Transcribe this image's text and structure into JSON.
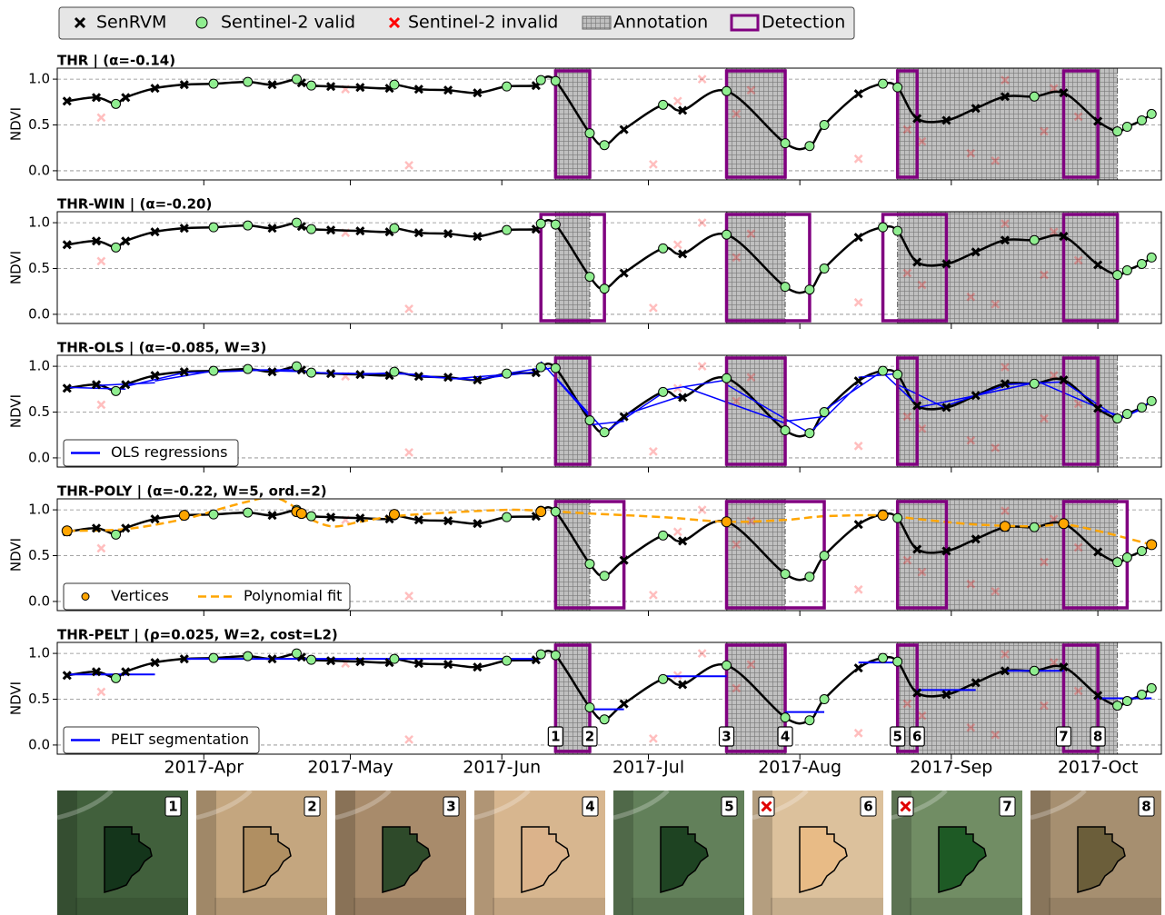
{
  "chart_data": {
    "type": "line",
    "ylabel": "NDVI",
    "xlim": [
      61,
      287
    ],
    "xticks": [
      {
        "value": 91,
        "label": "2017-Apr"
      },
      {
        "value": 121,
        "label": "2017-May"
      },
      {
        "value": 152,
        "label": "2017-Jun"
      },
      {
        "value": 182,
        "label": "2017-Jul"
      },
      {
        "value": 213,
        "label": "2017-Aug"
      },
      {
        "value": 244,
        "label": "2017-Sep"
      },
      {
        "value": 274,
        "label": "2017-Oct"
      }
    ],
    "ylim": [
      -0.1,
      1.12
    ],
    "yticks": [
      {
        "value": 0,
        "label": "0.0"
      },
      {
        "value": 0.5,
        "label": "0.5"
      },
      {
        "value": 1,
        "label": "1.0"
      }
    ],
    "grid": true,
    "series": [
      {
        "name": "SenRVM",
        "color": "#000000",
        "x": [
          63,
          69,
          75,
          81,
          87,
          105,
          111,
          117,
          123,
          129,
          135,
          141,
          147,
          159,
          177,
          189,
          225,
          237,
          243,
          249,
          255,
          267,
          274
        ],
        "values": [
          0.76,
          0.8,
          0.8,
          0.9,
          0.94,
          0.94,
          0.96,
          0.92,
          0.91,
          0.9,
          0.89,
          0.88,
          0.85,
          0.93,
          0.45,
          0.66,
          0.84,
          0.57,
          0.55,
          0.68,
          0.81,
          0.85,
          0.54
        ]
      },
      {
        "name": "Sentinel-2 valid",
        "color": "#90ee90",
        "x": [
          73,
          93,
          100,
          110,
          113,
          130,
          153,
          160,
          163,
          170,
          173,
          185,
          198,
          210,
          215,
          218,
          230,
          233,
          261,
          278,
          280,
          283,
          285
        ],
        "values": [
          0.73,
          0.95,
          0.97,
          1.0,
          0.93,
          0.94,
          0.92,
          0.99,
          0.98,
          0.41,
          0.28,
          0.72,
          0.87,
          0.3,
          0.27,
          0.5,
          0.95,
          0.91,
          0.81,
          0.43,
          0.48,
          0.55,
          0.62
        ]
      },
      {
        "name": "Sentinel-2 invalid",
        "color": "#ff0000",
        "x": [
          70,
          120,
          133,
          183,
          188,
          193,
          200,
          203,
          225,
          235,
          238,
          248,
          253,
          255,
          263,
          265,
          270
        ],
        "values": [
          0.58,
          0.89,
          0.06,
          0.07,
          0.76,
          1.0,
          0.62,
          0.88,
          0.13,
          0.45,
          0.32,
          0.19,
          0.11,
          0.99,
          0.43,
          0.9,
          0.59
        ]
      }
    ],
    "annotation_label": "Annotation",
    "annotation_color": "#c0c0c0",
    "annotations": [
      [
        163,
        170
      ],
      [
        198,
        210
      ],
      [
        233,
        278
      ]
    ],
    "detection_label": "Detection",
    "detection_color": "#800080",
    "panels": [
      {
        "title": "THR | (α=-0.14)",
        "detections": [
          [
            163,
            170
          ],
          [
            198,
            210
          ],
          [
            233,
            237
          ],
          [
            267,
            274
          ]
        ]
      },
      {
        "title": "THR-WIN | (α=-0.20)",
        "detections": [
          [
            160,
            173
          ],
          [
            198,
            215
          ],
          [
            230,
            243
          ],
          [
            267,
            278
          ]
        ]
      },
      {
        "title": "THR-OLS | (α=-0.085, W=3)",
        "detections": [
          [
            163,
            170
          ],
          [
            198,
            210
          ],
          [
            233,
            237
          ],
          [
            267,
            274
          ]
        ],
        "legend": "lower left",
        "ols": {
          "name": "OLS regressions",
          "color": "#0000ff",
          "segments": [
            [
              63,
              0.77,
              75,
              0.75
            ],
            [
              69,
              0.79,
              81,
              0.82
            ],
            [
              75,
              0.78,
              87,
              0.93
            ],
            [
              81,
              0.84,
              93,
              0.95
            ],
            [
              87,
              0.93,
              100,
              0.95
            ],
            [
              93,
              0.94,
              105,
              0.96
            ],
            [
              100,
              0.96,
              111,
              0.96
            ],
            [
              105,
              0.95,
              113,
              0.94
            ],
            [
              110,
              0.95,
              117,
              0.92
            ],
            [
              113,
              0.93,
              123,
              0.92
            ],
            [
              117,
              0.92,
              129,
              0.92
            ],
            [
              123,
              0.91,
              130,
              0.93
            ],
            [
              129,
              0.92,
              135,
              0.91
            ],
            [
              130,
              0.93,
              141,
              0.87
            ],
            [
              135,
              0.89,
              147,
              0.85
            ],
            [
              141,
              0.86,
              153,
              0.91
            ],
            [
              147,
              0.86,
              159,
              0.94
            ],
            [
              153,
              0.92,
              160,
              0.98
            ],
            [
              159,
              0.95,
              163,
              0.99
            ],
            [
              160,
              1.05,
              170,
              0.45
            ],
            [
              163,
              0.88,
              173,
              0.3
            ],
            [
              170,
              0.36,
              177,
              0.4
            ],
            [
              173,
              0.28,
              185,
              0.71
            ],
            [
              177,
              0.47,
              189,
              0.68
            ],
            [
              185,
              0.74,
              198,
              0.85
            ],
            [
              189,
              0.78,
              210,
              0.38
            ],
            [
              198,
              0.8,
              215,
              0.27
            ],
            [
              210,
              0.4,
              218,
              0.45
            ],
            [
              215,
              0.27,
              225,
              0.8
            ],
            [
              218,
              0.52,
              230,
              0.95
            ],
            [
              225,
              0.88,
              233,
              0.92
            ],
            [
              230,
              0.93,
              237,
              0.58
            ],
            [
              233,
              0.8,
              243,
              0.54
            ],
            [
              237,
              0.55,
              249,
              0.68
            ],
            [
              243,
              0.57,
              255,
              0.79
            ],
            [
              249,
              0.68,
              261,
              0.82
            ],
            [
              255,
              0.8,
              267,
              0.83
            ],
            [
              261,
              0.85,
              274,
              0.55
            ],
            [
              267,
              0.83,
              278,
              0.44
            ],
            [
              274,
              0.53,
              280,
              0.44
            ],
            [
              278,
              0.42,
              283,
              0.53
            ],
            [
              280,
              0.45,
              285,
              0.62
            ]
          ]
        }
      },
      {
        "title": "THR-POLY | (α=-0.22, W=5, ord.=2)",
        "detections": [
          [
            163,
            177
          ],
          [
            198,
            218
          ],
          [
            233,
            243
          ],
          [
            267,
            280
          ]
        ],
        "legend": "lower left",
        "vertices": {
          "name": "Vertices",
          "color": "#ffa500",
          "x": [
            63,
            87,
            110,
            111,
            130,
            160,
            198,
            230,
            255,
            267,
            285
          ],
          "values": [
            0.77,
            0.94,
            0.98,
            0.96,
            0.95,
            0.98,
            0.87,
            0.94,
            0.82,
            0.85,
            0.62
          ]
        },
        "poly": {
          "name": "Polynomial fit",
          "color": "#ffa500",
          "x": [
            63,
            75,
            87,
            95,
            100,
            105,
            109,
            111,
            117,
            123,
            130,
            141,
            153,
            160,
            170,
            185,
            198,
            210,
            218,
            230,
            237,
            249,
            261,
            267,
            274,
            285
          ],
          "values": [
            0.77,
            0.79,
            0.9,
            1.02,
            1.09,
            1.14,
            1.05,
            0.95,
            0.82,
            0.87,
            0.93,
            0.97,
            1.0,
            0.99,
            0.96,
            0.92,
            0.87,
            0.89,
            0.93,
            0.94,
            0.9,
            0.84,
            0.82,
            0.84,
            0.77,
            0.62
          ]
        }
      },
      {
        "title": "THR-PELT | (ρ=0.025, W=2, cost=L2)",
        "detections": [
          [
            163,
            170
          ],
          [
            198,
            210
          ],
          [
            233,
            237
          ],
          [
            267,
            274
          ]
        ],
        "legend": "lower left",
        "pelt": {
          "name": "PELT segmentation",
          "color": "#0000ff",
          "segments": [
            [
              63,
              81,
              0.77
            ],
            [
              87,
              160,
              0.94
            ],
            [
              170,
              177,
              0.39
            ],
            [
              185,
              198,
              0.75
            ],
            [
              210,
              218,
              0.36
            ],
            [
              225,
              233,
              0.9
            ],
            [
              237,
              249,
              0.6
            ],
            [
              255,
              267,
              0.81
            ],
            [
              274,
              285,
              0.51
            ]
          ]
        },
        "markers": [
          {
            "x": 163,
            "label": "1"
          },
          {
            "x": 170,
            "label": "2"
          },
          {
            "x": 198,
            "label": "3"
          },
          {
            "x": 210,
            "label": "4"
          },
          {
            "x": 233,
            "label": "5"
          },
          {
            "x": 237,
            "label": "6"
          },
          {
            "x": 267,
            "label": "7"
          },
          {
            "x": 274,
            "label": "8"
          }
        ]
      }
    ],
    "thumbnails": [
      {
        "label": "1",
        "background": "#41603c",
        "field": "#14351b",
        "invalid": false
      },
      {
        "label": "2",
        "background": "#c4a67f",
        "field": "#b08f62",
        "invalid": false
      },
      {
        "label": "3",
        "background": "#a88b6b",
        "field": "#2e4a2a",
        "invalid": false
      },
      {
        "label": "4",
        "background": "#d7b68f",
        "field": "#dbb38b",
        "invalid": false
      },
      {
        "label": "5",
        "background": "#62805a",
        "field": "#1e4322",
        "invalid": false
      },
      {
        "label": "6",
        "background": "#dcc19c",
        "field": "#e8bb86",
        "invalid": true
      },
      {
        "label": "7",
        "background": "#718d64",
        "field": "#1e5a25",
        "invalid": true
      },
      {
        "label": "8",
        "background": "#a68f70",
        "field": "#6b5e3a",
        "invalid": false
      }
    ]
  }
}
